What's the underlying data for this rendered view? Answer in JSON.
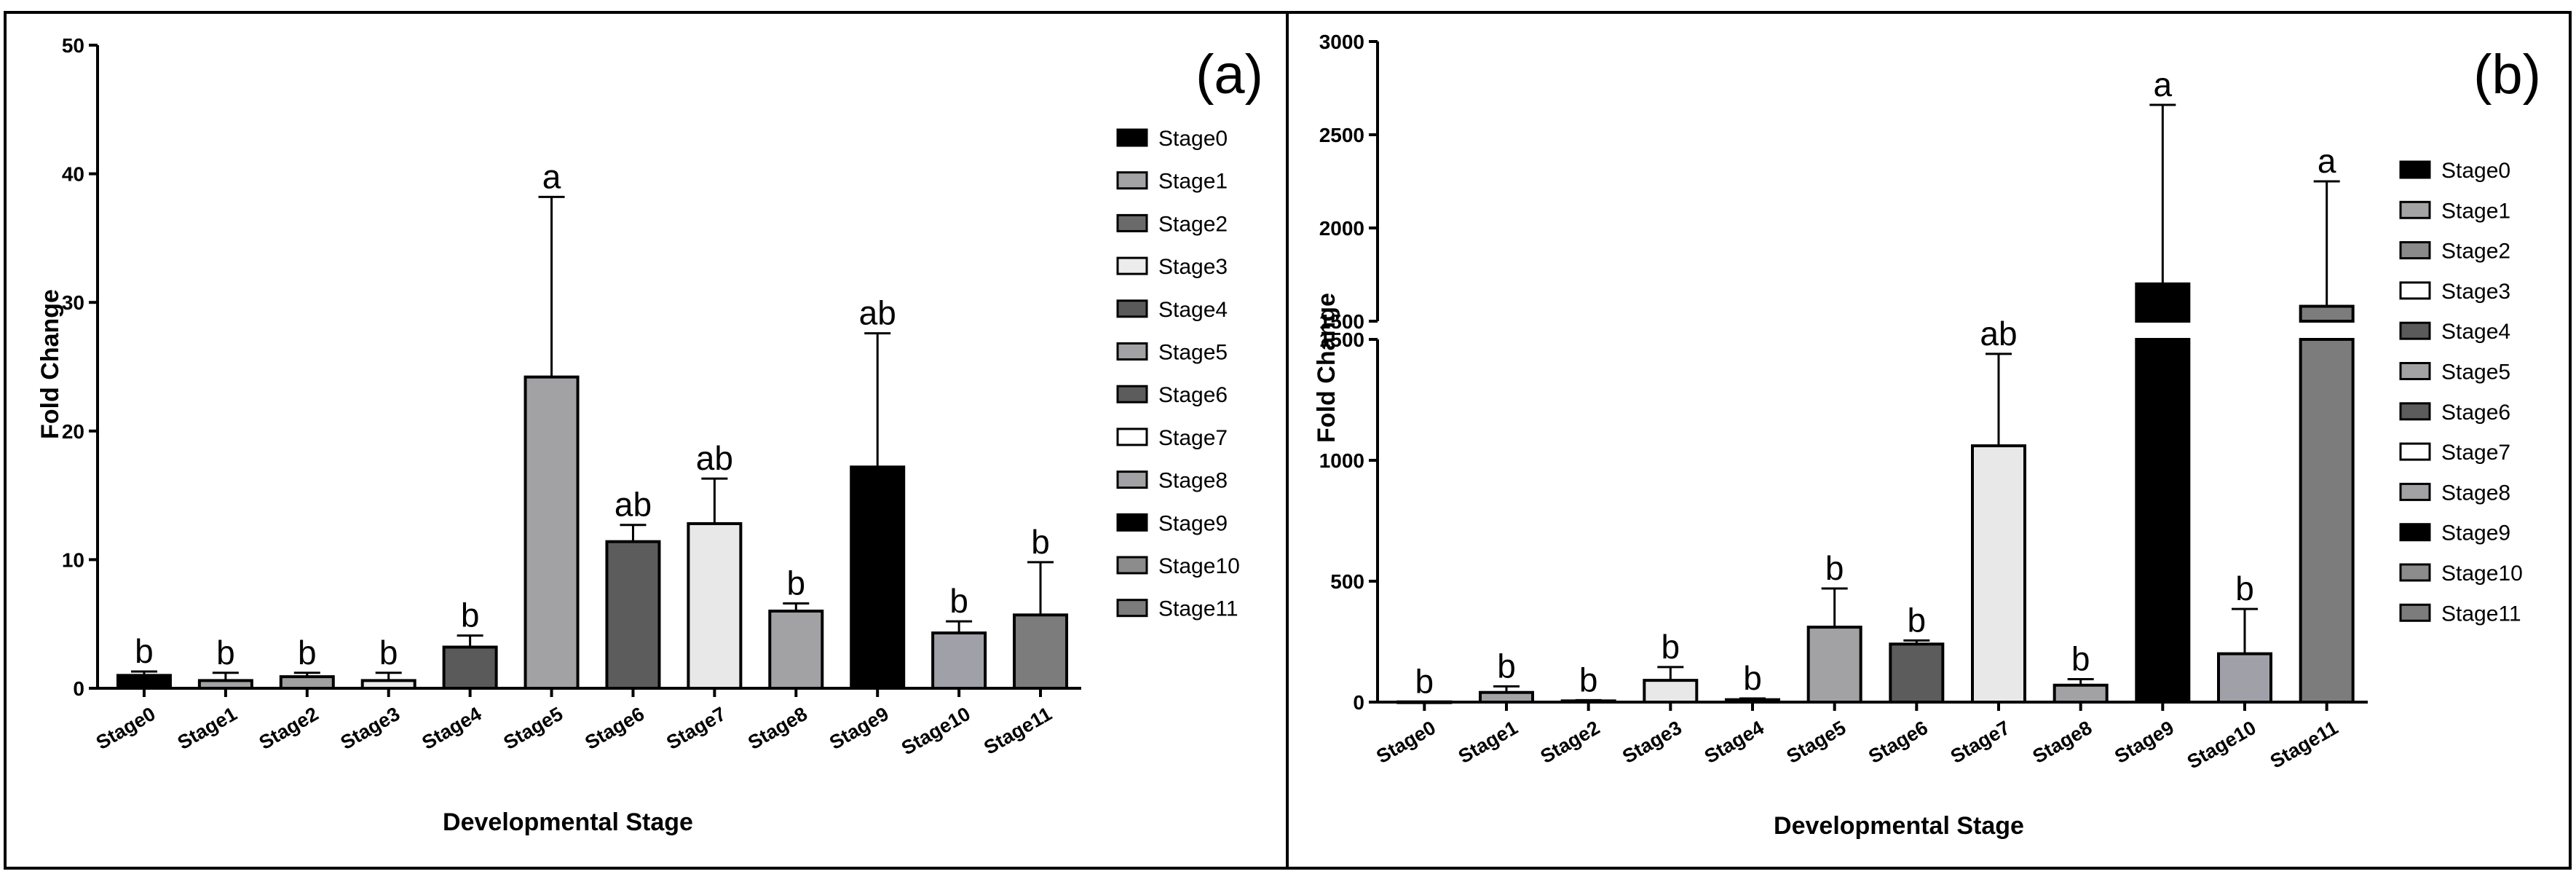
{
  "chart_data": [
    {
      "panel_label": "(a)",
      "type": "bar",
      "xlabel": "Developmental Stage",
      "ylabel": "Fold Change",
      "ylim": [
        0,
        50
      ],
      "yticks": [
        0,
        10,
        20,
        30,
        40,
        50
      ],
      "categories": [
        "Stage0",
        "Stage1",
        "Stage2",
        "Stage3",
        "Stage4",
        "Stage5",
        "Stage6",
        "Stage7",
        "Stage8",
        "Stage9",
        "Stage10",
        "Stage11"
      ],
      "values": [
        1.0,
        0.6,
        0.9,
        0.6,
        3.2,
        24.2,
        11.4,
        12.8,
        6.0,
        17.2,
        4.3,
        5.7
      ],
      "errors": [
        0.3,
        0.6,
        0.3,
        0.6,
        0.9,
        14.0,
        1.3,
        3.5,
        0.6,
        10.4,
        0.9,
        4.1
      ],
      "significance": [
        "b",
        "b",
        "b",
        "b",
        "b",
        "a",
        "ab",
        "ab",
        "b",
        "ab",
        "b",
        "b"
      ],
      "colors": [
        "#000000",
        "#a3a3a6",
        "#a0a0a0",
        "#ebebeb",
        "#5a5a5a",
        "#a2a2a5",
        "#5c5c5c",
        "#e8e8e8",
        "#a2a2a5",
        "#000000",
        "#a0a0a8",
        "#7c7c7c"
      ],
      "legend": [
        "Stage0",
        "Stage1",
        "Stage2",
        "Stage3",
        "Stage4",
        "Stage5",
        "Stage6",
        "Stage7",
        "Stage8",
        "Stage9",
        "Stage10",
        "Stage11"
      ],
      "legend_colors": [
        "#000000",
        "#a3a3a6",
        "#6a6a6a",
        "#ececec",
        "#5a5a5a",
        "#a2a2a5",
        "#5c5c5c",
        "#ffffff",
        "#a2a2a5",
        "#000000",
        "#8c8c8c",
        "#7c7c7c"
      ],
      "legend_position": "right"
    },
    {
      "panel_label": "(b)",
      "type": "bar",
      "broken_axis": true,
      "xlabel": "Developmental Stage",
      "ylabel": "Fold Change",
      "ylim_lower": [
        0,
        1500
      ],
      "ylim_upper": [
        1500,
        3000
      ],
      "yticks_lower": [
        0,
        500,
        1000,
        1500
      ],
      "yticks_upper": [
        1500,
        2000,
        2500,
        3000
      ],
      "categories": [
        "Stage0",
        "Stage1",
        "Stage2",
        "Stage3",
        "Stage4",
        "Stage5",
        "Stage6",
        "Stage7",
        "Stage8",
        "Stage9",
        "Stage10",
        "Stage11"
      ],
      "values": [
        1,
        40,
        5,
        90,
        10,
        310,
        240,
        1060,
        70,
        1700,
        200,
        1580
      ],
      "errors": [
        0,
        25,
        3,
        55,
        5,
        160,
        15,
        380,
        25,
        960,
        185,
        670
      ],
      "significance": [
        "b",
        "b",
        "b",
        "b",
        "b",
        "b",
        "b",
        "ab",
        "b",
        "a",
        "b",
        "a"
      ],
      "colors": [
        "#000000",
        "#a3a3a6",
        "#7a7a7a",
        "#e8e8e8",
        "#5a5a5a",
        "#a2a2a5",
        "#5c5c5c",
        "#e8e8e8",
        "#a2a2a5",
        "#000000",
        "#a0a0a8",
        "#7c7c7c"
      ],
      "legend": [
        "Stage0",
        "Stage1",
        "Stage2",
        "Stage3",
        "Stage4",
        "Stage5",
        "Stage6",
        "Stage7",
        "Stage8",
        "Stage9",
        "Stage10",
        "Stage11"
      ],
      "legend_colors": [
        "#000000",
        "#a3a3a6",
        "#8a8a8a",
        "#ffffff",
        "#5a5a5a",
        "#a2a2a5",
        "#5c5c5c",
        "#ffffff",
        "#a2a2a5",
        "#000000",
        "#8c8c8c",
        "#7c7c7c"
      ],
      "legend_position": "right"
    }
  ]
}
